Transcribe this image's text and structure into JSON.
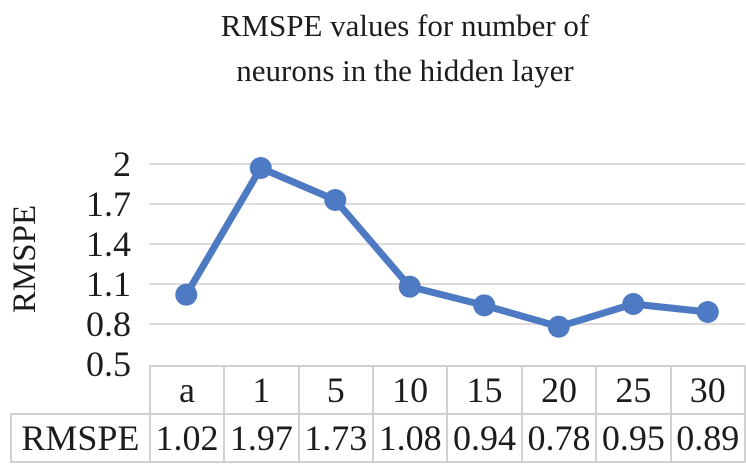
{
  "title": {
    "line1": "RMSPE values for number of",
    "line2": "neurons in the hidden layer"
  },
  "y_axis": {
    "label": "RMSPE",
    "ticks": [
      "2",
      "1.7",
      "1.4",
      "1.1",
      "0.8",
      "0.5"
    ]
  },
  "table": {
    "row_label": "RMSPE",
    "columns": [
      "a",
      "1",
      "5",
      "10",
      "15",
      "20",
      "25",
      "30"
    ],
    "values": [
      "1.02",
      "1.97",
      "1.73",
      "1.08",
      "0.94",
      "0.78",
      "0.95",
      "0.89"
    ]
  },
  "colors": {
    "line": "#4d7ac2",
    "marker": "#4d7ac2",
    "gridline": "#d9d7d7",
    "table_border": "#d2d0d0",
    "text": "#1c1c1c",
    "background": "#ffffff"
  },
  "chart_data": {
    "type": "line",
    "title": "RMSPE values for number of neurons in the hidden layer",
    "categories": [
      "a",
      "1",
      "5",
      "10",
      "15",
      "20",
      "25",
      "30"
    ],
    "series": [
      {
        "name": "RMSPE",
        "values": [
          1.02,
          1.97,
          1.73,
          1.08,
          0.94,
          0.78,
          0.95,
          0.89
        ]
      }
    ],
    "xlabel": "",
    "ylabel": "RMSPE",
    "ylim": [
      0.5,
      2
    ],
    "yticks": [
      0.5,
      0.8,
      1.1,
      1.4,
      1.7,
      2
    ],
    "grid": true,
    "legend": "none",
    "marker": "circle",
    "data_table_shown": true
  }
}
